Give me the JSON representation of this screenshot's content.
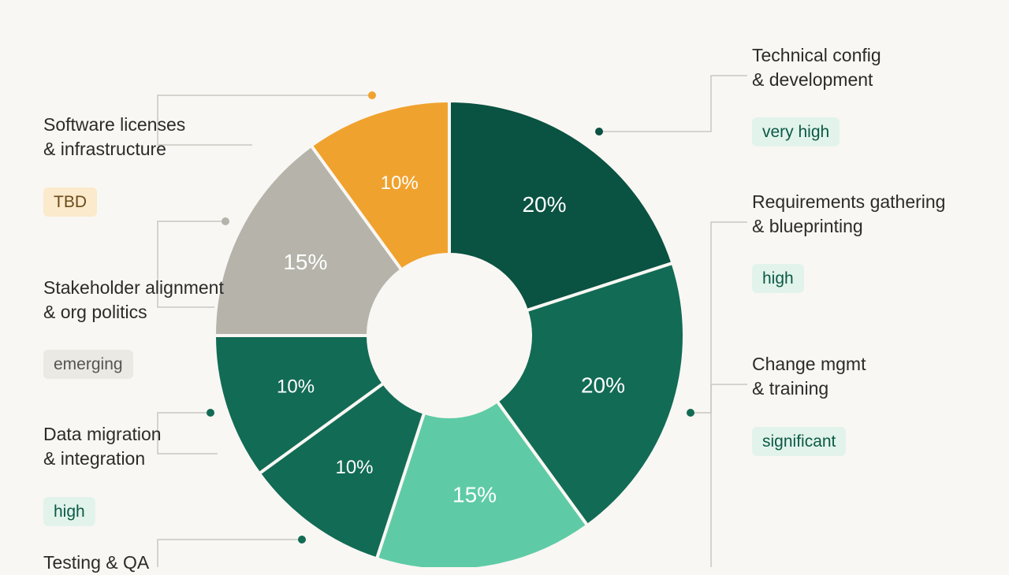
{
  "chart_data": {
    "type": "pie",
    "variant": "donut",
    "slices": [
      {
        "label": "Technical config & development",
        "value": 20,
        "value_label": "20%",
        "badge": "very high",
        "color": "#0a5242"
      },
      {
        "label": "Change mgmt & training",
        "value": 20,
        "value_label": "20%",
        "badge": "significant",
        "color": "#126b55"
      },
      {
        "label": "Requirements gathering & blueprinting",
        "value": 15,
        "value_label": "15%",
        "badge": "high",
        "color": "#5ecba6"
      },
      {
        "label": "Testing & QA",
        "value": 10,
        "value_label": "10%",
        "badge": "",
        "color": "#126b55"
      },
      {
        "label": "Data migration & integration",
        "value": 10,
        "value_label": "10%",
        "badge": "high",
        "color": "#126b55"
      },
      {
        "label": "Stakeholder alignment & org politics",
        "value": 15,
        "value_label": "15%",
        "badge": "emerging",
        "color": "#b5b3aa"
      },
      {
        "label": "Software licenses & infrastructure",
        "value": 10,
        "value_label": "10%",
        "badge": "TBD",
        "color": "#f0a22e"
      }
    ]
  },
  "labels": {
    "technical": {
      "line1": "Technical config",
      "line2": "& development",
      "badge": "very high"
    },
    "requirements": {
      "line1": "Requirements gathering",
      "line2": "& blueprinting",
      "badge": "high"
    },
    "change": {
      "line1": "Change mgmt",
      "line2": "& training",
      "badge": "significant"
    },
    "software": {
      "line1": "Software licenses",
      "line2": "& infrastructure",
      "badge": "TBD"
    },
    "stakeholder": {
      "line1": "Stakeholder alignment",
      "line2": "& org politics",
      "badge": "emerging"
    },
    "data": {
      "line1": "Data migration",
      "line2": "& integration",
      "badge": "high"
    },
    "testing": {
      "line1": "Testing & QA"
    }
  },
  "colors": {
    "dark_green": "#0a5242",
    "mid_green": "#126b55",
    "light_green": "#5ecba6",
    "grey": "#b5b3aa",
    "orange": "#f0a22e",
    "background": "#f9f7f3",
    "connector": "#c9c7c1"
  }
}
